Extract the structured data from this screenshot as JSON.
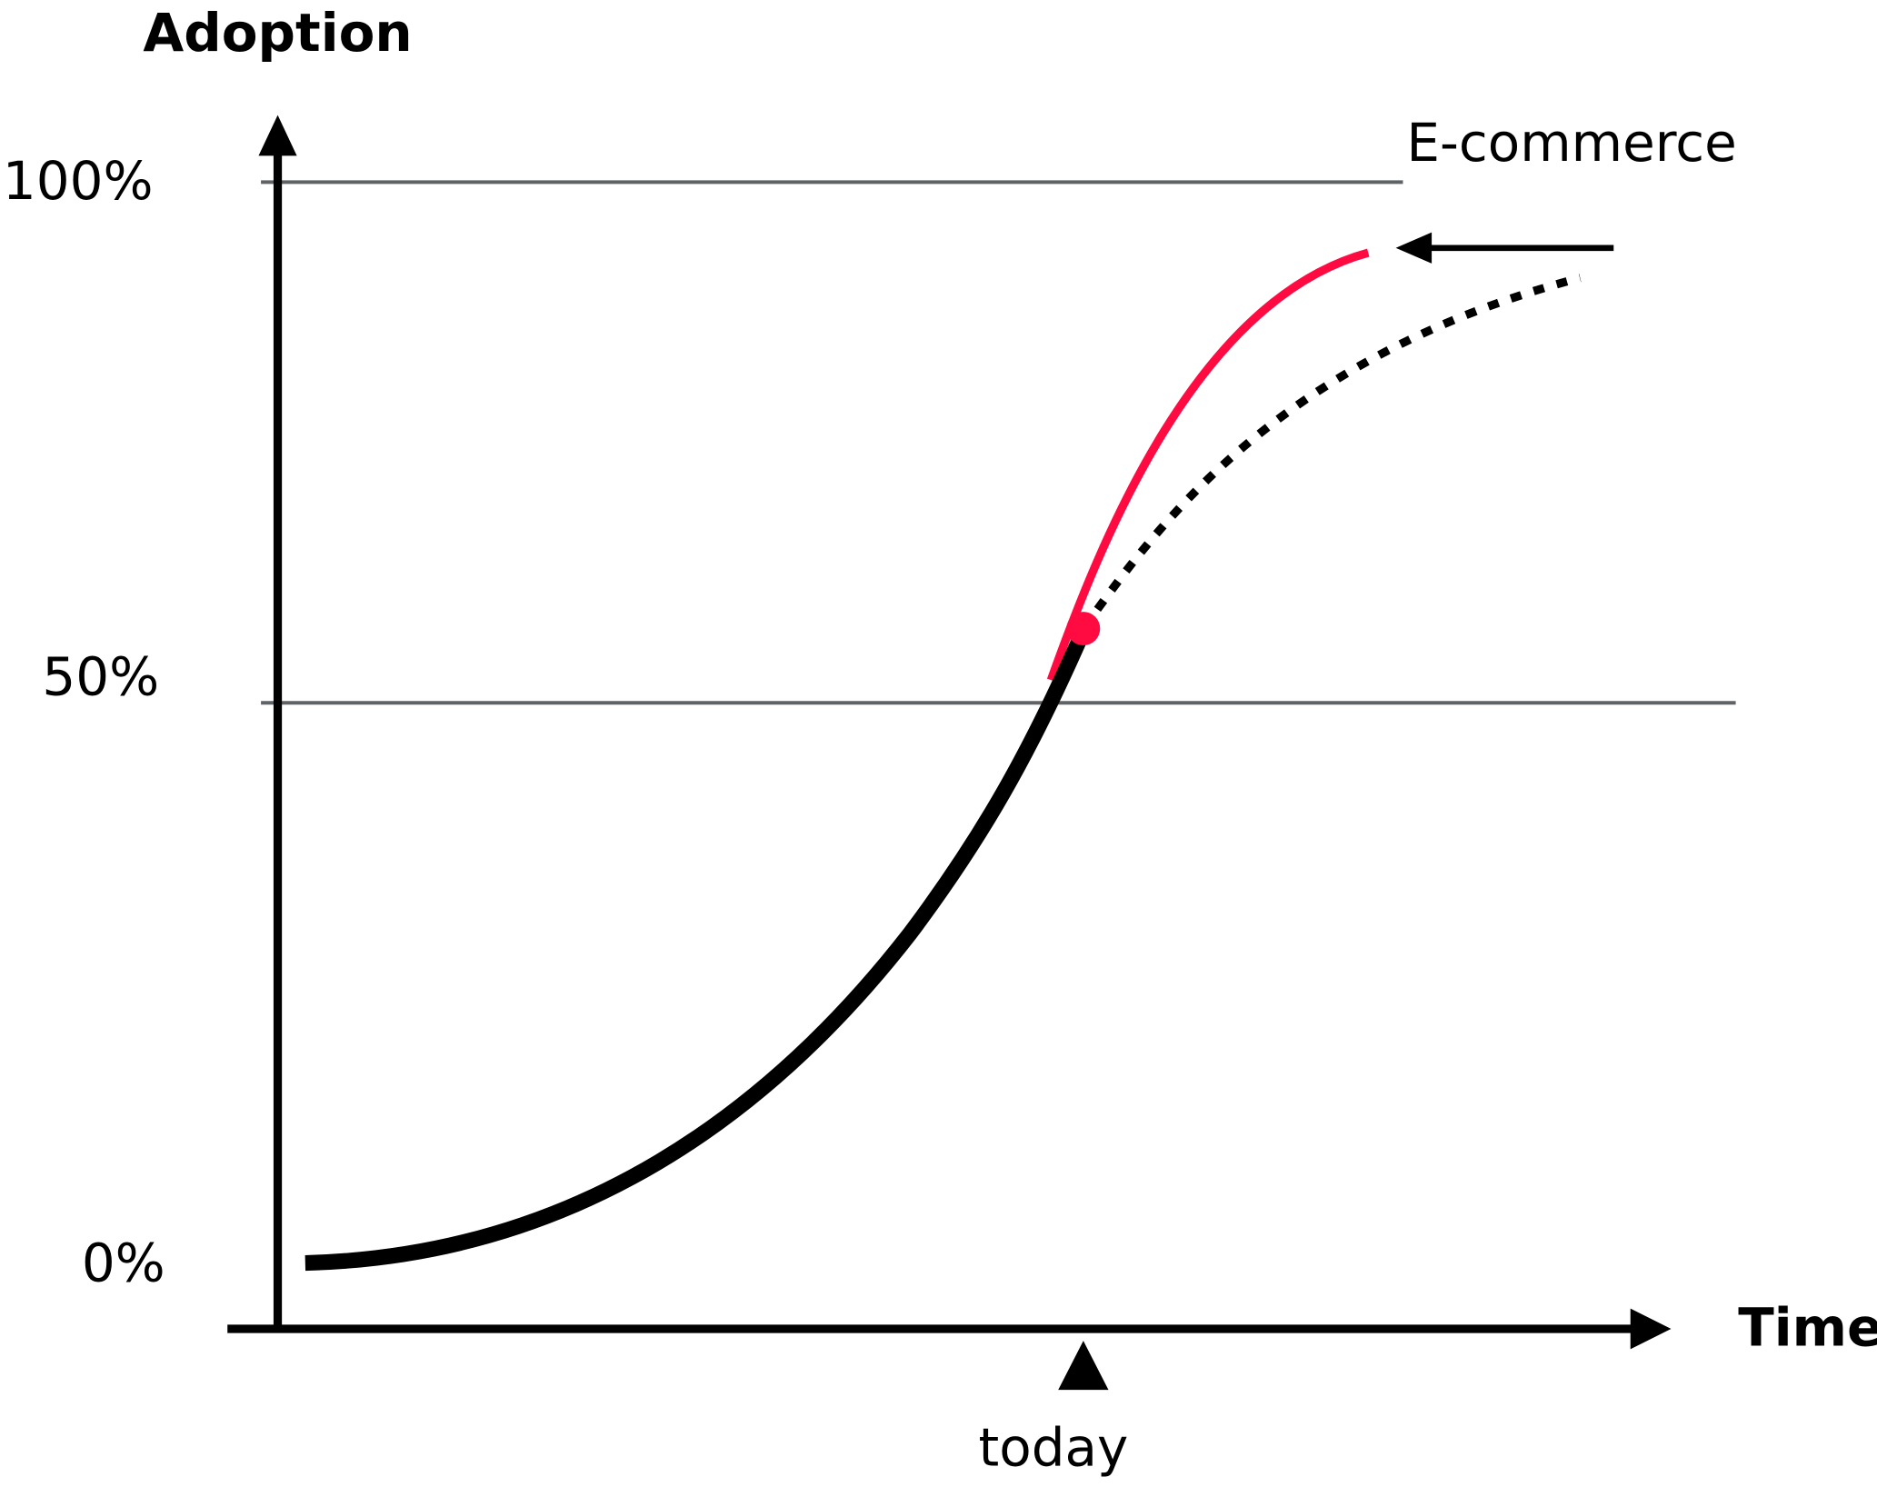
{
  "axis": {
    "y_title": "Adoption",
    "x_title": "Time",
    "y_labels": [
      "100%",
      "50%",
      "0%"
    ],
    "x_marker": "today"
  },
  "annotation": "E-commerce"
}
